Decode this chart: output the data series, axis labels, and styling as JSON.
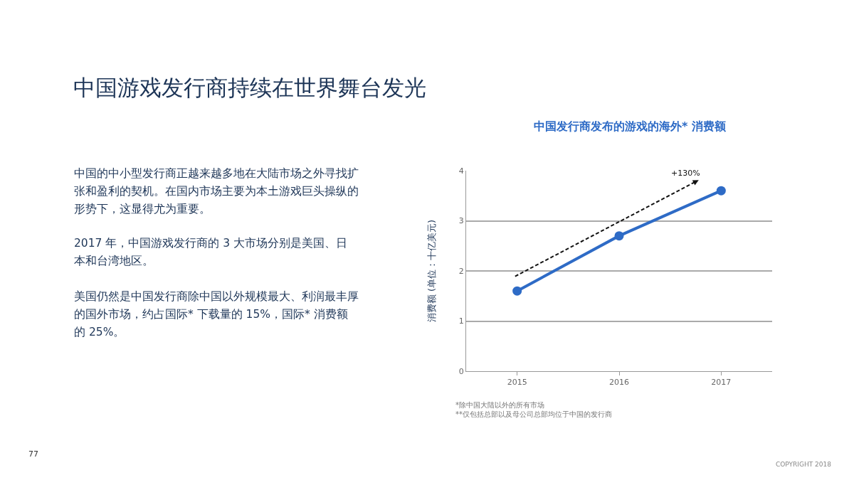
{
  "chart_data": {
    "type": "line",
    "title": "中国游戏发行商持续在世界舞台发光",
    "subtitle": "中国发行商发布的游戏的海外* 消费额",
    "ylabel": "消费额 (单位：十亿美元)",
    "categories": [
      "2015",
      "2016",
      "2017"
    ],
    "series": [
      {
        "color": "#2e6bc6",
        "values": [
          1.6,
          2.7,
          3.6
        ]
      }
    ],
    "ylim": [
      0,
      4
    ],
    "yticks": [
      0,
      1,
      2,
      3,
      4
    ],
    "grid": "y",
    "marker": "circle",
    "line_style": "solid",
    "annotations": [
      "中国的中小型发行商正越来越多地在大陆市场之外寻找扩张和盈利的契机。在国内市场主要为本土游戏巨头操纵的形势下，这显得尤为重要。",
      "2017 年，中国游戏发行商的 3 大市场分别是美国、日本和台湾地区。",
      "美国仍然是中国发行商除中国以外规模最大、利润最丰厚的国外市场，约占国际* 下载量的 15%，国际* 消费额的 25%。",
      "*除中国大陆以外的所有市场",
      "**仅包括总部以及母公司总部均位于中国的发行商",
      "77",
      "COPYRIGHT 2018",
      "+130%"
    ]
  }
}
